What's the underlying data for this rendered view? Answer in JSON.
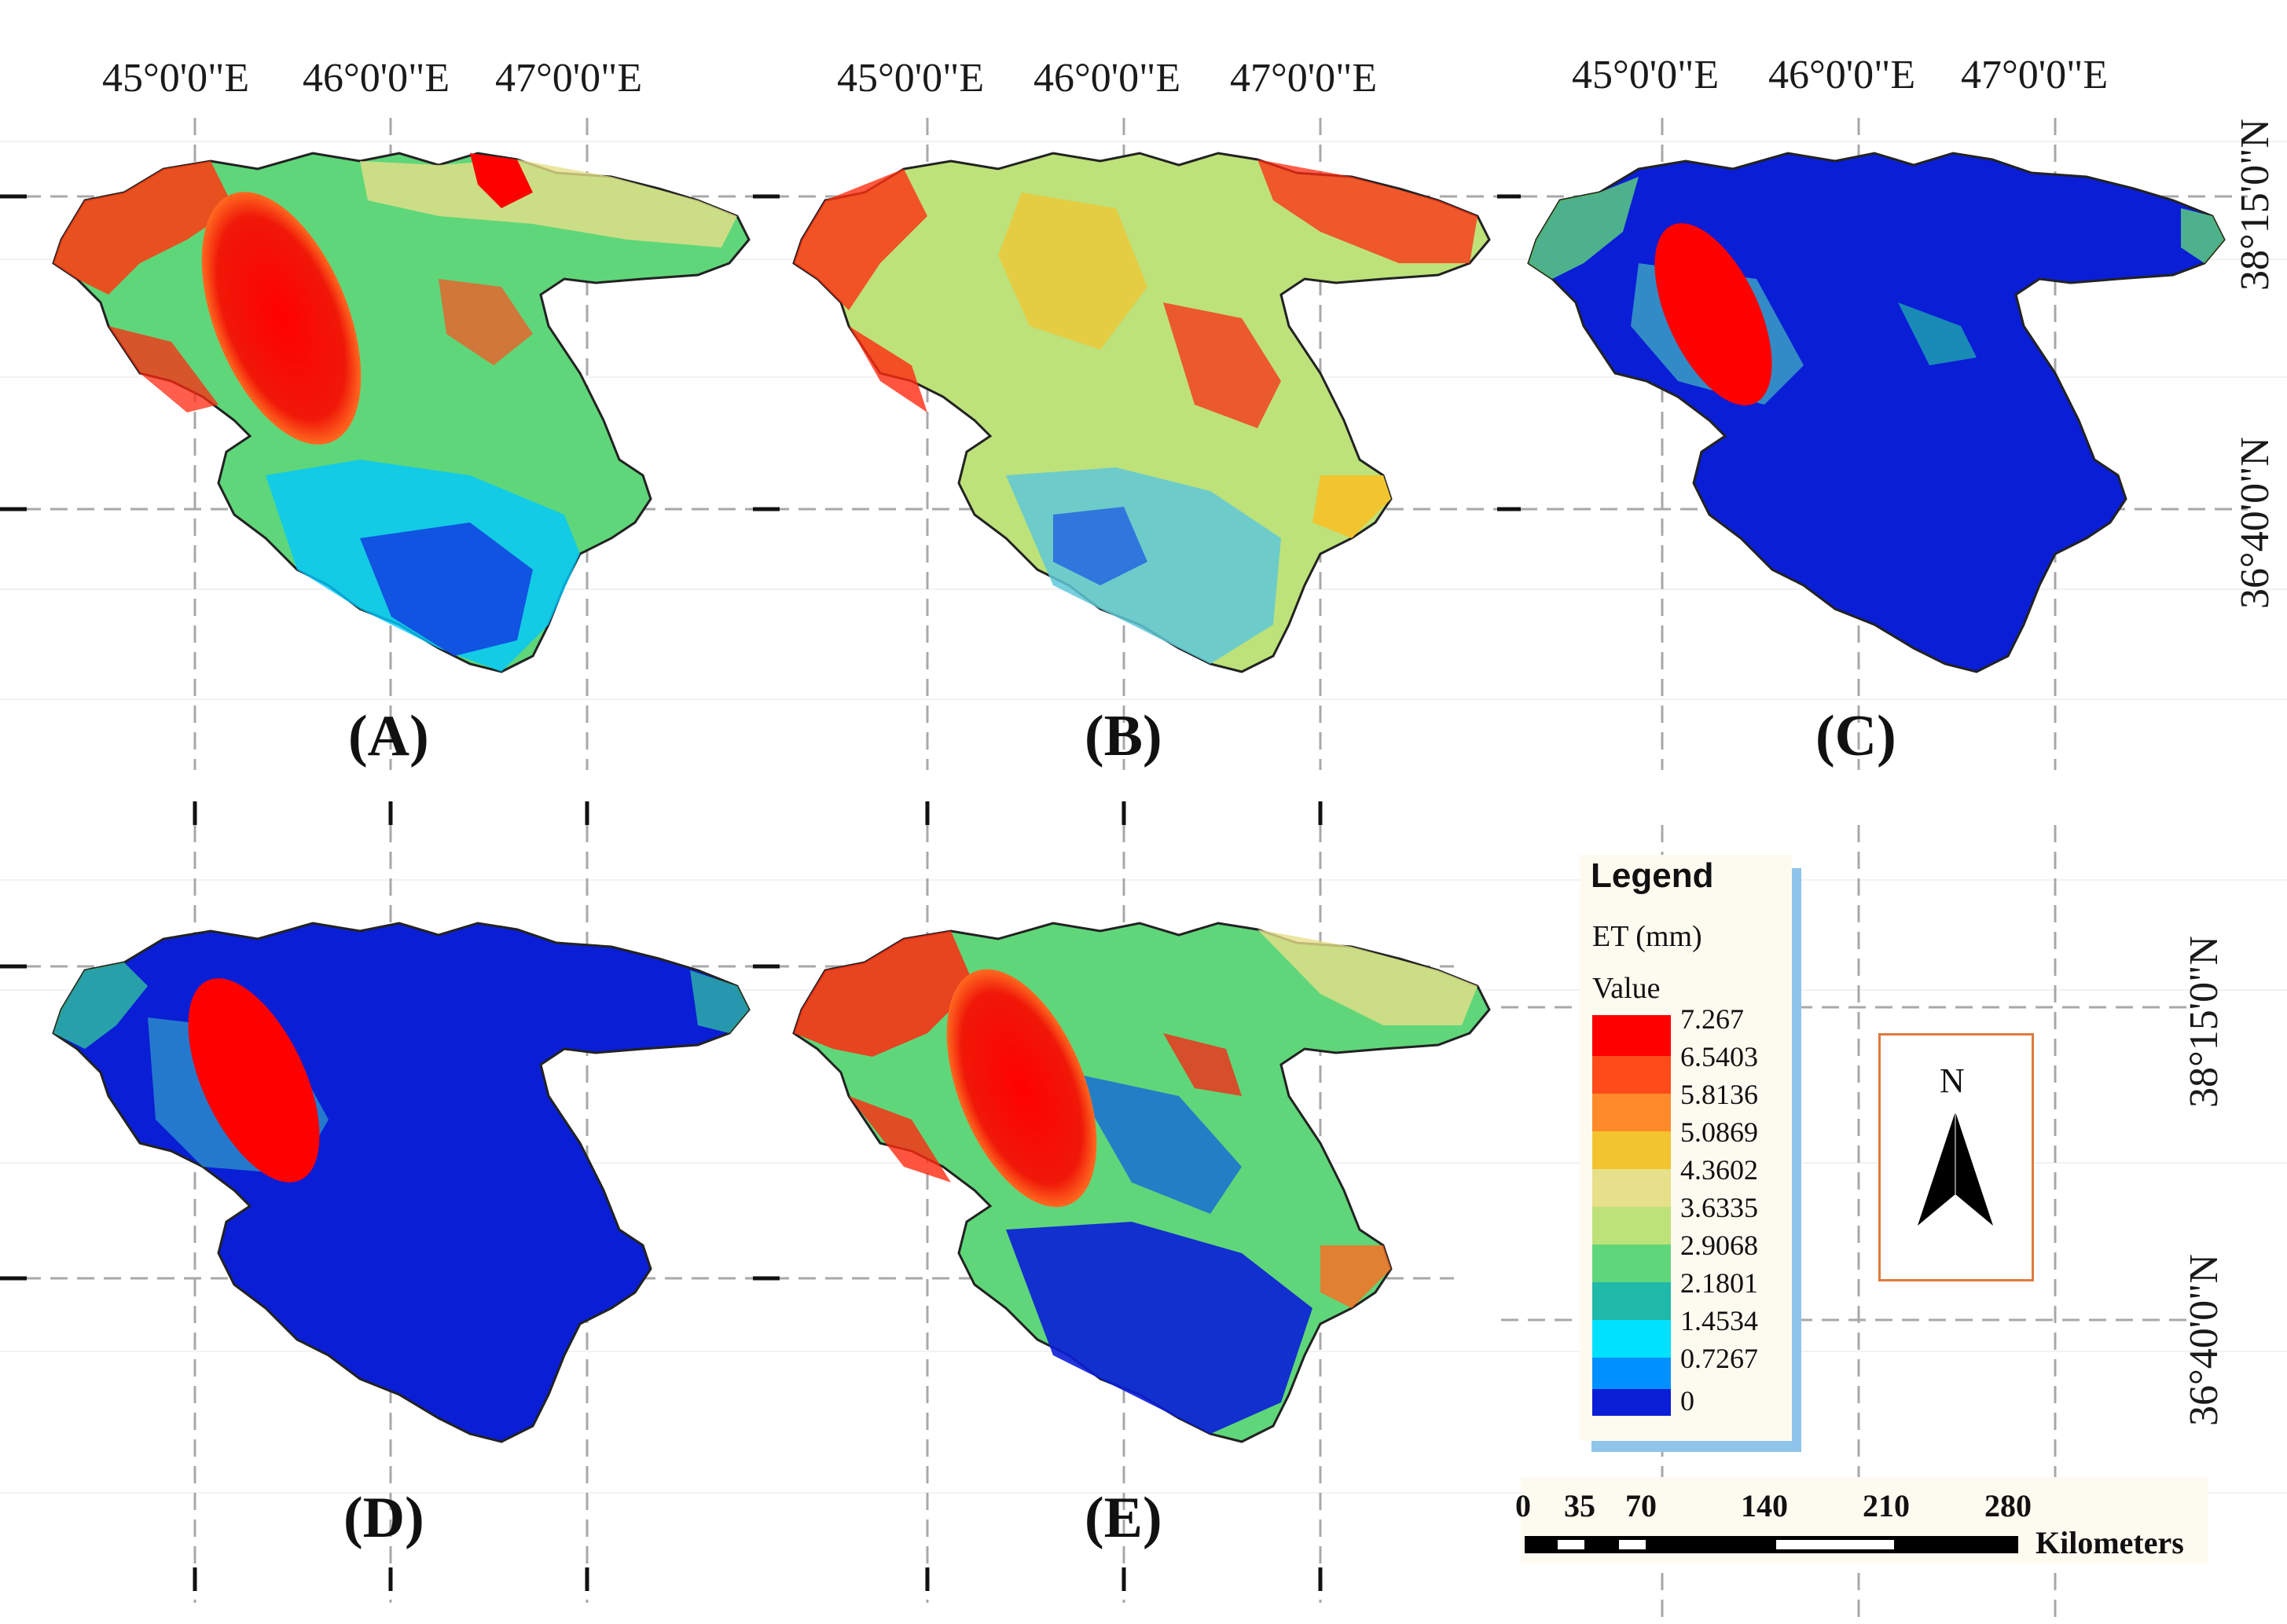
{
  "longitude_labels_top": [
    "45°0'0\"E",
    "46°0'0\"E",
    "47°0'0\"E"
  ],
  "latitude_labels": [
    "38°15'0\"N",
    "36°40'0\"N"
  ],
  "panels": [
    {
      "label": "(A)",
      "lake": "high",
      "south": "mixed-low"
    },
    {
      "label": "(B)",
      "lake": "mid",
      "south": "mixed"
    },
    {
      "label": "(C)",
      "lake": "high",
      "south": "low"
    },
    {
      "label": "(D)",
      "lake": "high",
      "south": "low"
    },
    {
      "label": "(E)",
      "lake": "high",
      "south": "mixed-low"
    }
  ],
  "legend": {
    "title": "Legend",
    "variable": "ET (mm)",
    "value_label": "Value",
    "ticks": [
      "7.267",
      "6.5403",
      "5.8136",
      "5.0869",
      "4.3602",
      "3.6335",
      "2.9068",
      "2.1801",
      "1.4534",
      "0.7267",
      "0"
    ],
    "ramp_colors": [
      "#ff0000",
      "#ff4a1a",
      "#ff8a2a",
      "#f2c530",
      "#e6e08a",
      "#bde27a",
      "#5fd67a",
      "#20b8a8",
      "#00e0ff",
      "#0090ff",
      "#0a1ed6"
    ]
  },
  "north_arrow": {
    "label": "N"
  },
  "scale_bar": {
    "ticks": [
      "0",
      "35",
      "70",
      "140",
      "210",
      "280"
    ],
    "unit": "Kilometers"
  }
}
